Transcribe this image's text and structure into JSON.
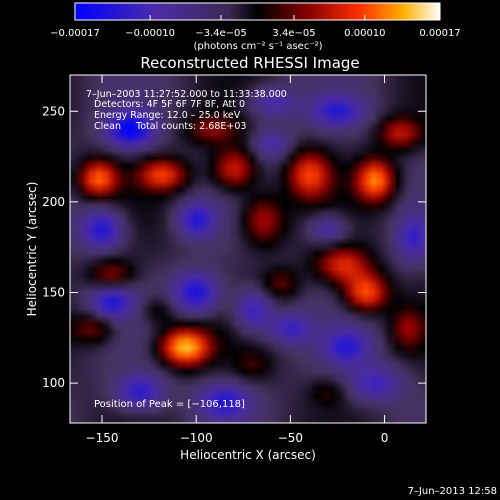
{
  "chart_data": {
    "type": "heatmap",
    "title": "Reconstructed RHESSI Image",
    "xlabel": "Heliocentric X (arcsec)",
    "ylabel": "Heliocentric Y (arcsec)",
    "xlim": [
      -167,
      22
    ],
    "ylim": [
      78,
      270
    ],
    "x_ticks": [
      -150,
      -100,
      -50,
      0
    ],
    "y_ticks": [
      100,
      150,
      200,
      250
    ],
    "x_tick_labels": [
      "−150",
      "−100",
      "−50",
      "0"
    ],
    "y_tick_labels": [
      "100",
      "150",
      "200",
      "250"
    ],
    "colorbar": {
      "range": [
        -0.00017,
        0.00017
      ],
      "tick_values": [
        -0.00017,
        -0.0001,
        -3.4e-05,
        3.4e-05,
        0.0001,
        0.00017
      ],
      "tick_labels": [
        "−0.00017",
        "−0.00010",
        "−3.4e−05",
        "3.4e−05",
        "0.00010",
        "0.00017"
      ],
      "units": "(photons cm⁻² s⁻¹ asec⁻²)"
    },
    "annotations": {
      "time_range": "7–Jun–2003 11:27:52.000 to 11:33:38.000",
      "detectors": "Detectors: 4F 5F 6F 7F 8F, Att 0",
      "energy": "Energy Range: 12.0 – 25.0 keV",
      "clean": "Clean     Total counts: 2.68E+03",
      "peak": "Position of Peak = [−106,118]"
    },
    "peak": {
      "x": -106,
      "y": 118
    },
    "blobs": [
      {
        "x": -106,
        "y": 120,
        "a": 1.0,
        "sx": 9,
        "sy": 7
      },
      {
        "x": -152,
        "y": 213,
        "a": 0.75,
        "sx": 7,
        "sy": 7
      },
      {
        "x": -118,
        "y": 215,
        "a": 0.65,
        "sx": 9,
        "sy": 6
      },
      {
        "x": -80,
        "y": 218,
        "a": 0.6,
        "sx": 8,
        "sy": 8
      },
      {
        "x": -92,
        "y": 240,
        "a": 0.35,
        "sx": 10,
        "sy": 6
      },
      {
        "x": -65,
        "y": 190,
        "a": 0.5,
        "sx": 8,
        "sy": 10
      },
      {
        "x": -40,
        "y": 215,
        "a": 0.65,
        "sx": 8,
        "sy": 9
      },
      {
        "x": -22,
        "y": 165,
        "a": 0.6,
        "sx": 10,
        "sy": 7
      },
      {
        "x": -5,
        "y": 212,
        "a": 0.85,
        "sx": 7,
        "sy": 8
      },
      {
        "x": 8,
        "y": 238,
        "a": 0.5,
        "sx": 8,
        "sy": 6
      },
      {
        "x": -10,
        "y": 150,
        "a": 0.75,
        "sx": 8,
        "sy": 7
      },
      {
        "x": 12,
        "y": 130,
        "a": 0.35,
        "sx": 6,
        "sy": 8
      },
      {
        "x": -145,
        "y": 160,
        "a": 0.4,
        "sx": 8,
        "sy": 6
      },
      {
        "x": -155,
        "y": 130,
        "a": 0.35,
        "sx": 8,
        "sy": 6
      },
      {
        "x": -120,
        "y": 140,
        "a": 0.25,
        "sx": 7,
        "sy": 6
      },
      {
        "x": -55,
        "y": 155,
        "a": 0.3,
        "sx": 7,
        "sy": 6
      },
      {
        "x": -70,
        "y": 110,
        "a": 0.2,
        "sx": 7,
        "sy": 6
      },
      {
        "x": -30,
        "y": 95,
        "a": 0.2,
        "sx": 7,
        "sy": 5
      },
      {
        "x": -135,
        "y": 240,
        "a": -0.8,
        "sx": 9,
        "sy": 7
      },
      {
        "x": -150,
        "y": 185,
        "a": -0.7,
        "sx": 8,
        "sy": 8
      },
      {
        "x": -100,
        "y": 190,
        "a": -0.6,
        "sx": 7,
        "sy": 7
      },
      {
        "x": -145,
        "y": 145,
        "a": -0.6,
        "sx": 8,
        "sy": 6
      },
      {
        "x": -100,
        "y": 150,
        "a": -0.7,
        "sx": 9,
        "sy": 8
      },
      {
        "x": -130,
        "y": 95,
        "a": -0.6,
        "sx": 9,
        "sy": 7
      },
      {
        "x": -70,
        "y": 140,
        "a": -0.6,
        "sx": 7,
        "sy": 8
      },
      {
        "x": -50,
        "y": 130,
        "a": -0.5,
        "sx": 8,
        "sy": 6
      },
      {
        "x": -85,
        "y": 90,
        "a": -0.6,
        "sx": 10,
        "sy": 7
      },
      {
        "x": -20,
        "y": 120,
        "a": -0.55,
        "sx": 9,
        "sy": 7
      },
      {
        "x": -5,
        "y": 100,
        "a": -0.5,
        "sx": 10,
        "sy": 7
      },
      {
        "x": -25,
        "y": 250,
        "a": -0.55,
        "sx": 10,
        "sy": 6
      },
      {
        "x": -60,
        "y": 255,
        "a": -0.45,
        "sx": 9,
        "sy": 6
      },
      {
        "x": -30,
        "y": 185,
        "a": -0.45,
        "sx": 7,
        "sy": 6
      },
      {
        "x": 15,
        "y": 180,
        "a": -0.5,
        "sx": 6,
        "sy": 9
      },
      {
        "x": -60,
        "y": 232,
        "a": -0.4,
        "sx": 7,
        "sy": 6
      }
    ]
  },
  "footer": {
    "timestamp": "7–Jun–2013 12:58"
  }
}
